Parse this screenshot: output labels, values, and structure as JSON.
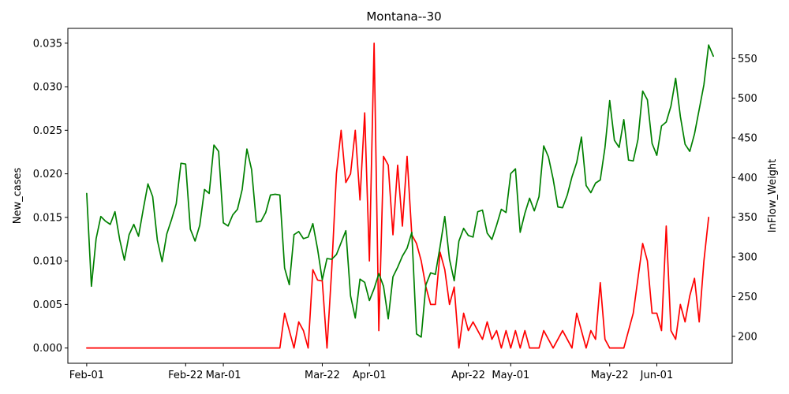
{
  "chart_data": {
    "type": "line",
    "title": "Montana--30",
    "xlabel": "",
    "ylabel": "New_cases",
    "y2label": "InFlow_Weight",
    "x_tick_labels": [
      "Feb-01",
      "Feb-22",
      "Mar-01",
      "Mar-22",
      "Apr-01",
      "Apr-22",
      "May-01",
      "May-22",
      "Jun-01"
    ],
    "x_tick_dates": [
      "2020-02-01",
      "2020-02-22",
      "2020-03-01",
      "2020-03-22",
      "2020-04-01",
      "2020-04-22",
      "2020-05-01",
      "2020-05-22",
      "2020-06-01"
    ],
    "ylim": [
      -0.00175,
      0.0367
    ],
    "y_ticks": [
      0.0,
      0.005,
      0.01,
      0.015,
      0.02,
      0.025,
      0.03,
      0.035
    ],
    "y_tick_labels": [
      "0.000",
      "0.005",
      "0.010",
      "0.015",
      "0.020",
      "0.025",
      "0.030",
      "0.035"
    ],
    "y2lim": [
      166,
      588
    ],
    "y2_ticks": [
      200,
      250,
      300,
      350,
      400,
      450,
      500,
      550
    ],
    "y2_tick_labels": [
      "200",
      "250",
      "300",
      "350",
      "400",
      "450",
      "500",
      "550"
    ],
    "grid": false,
    "legend": "none",
    "series": [
      {
        "axis": "left",
        "color": "#ff0000",
        "points": [
          [
            "2020-02-01",
            0
          ],
          [
            "2020-03-13",
            0
          ],
          [
            "2020-03-14",
            0.004
          ],
          [
            "2020-03-15",
            0.002
          ],
          [
            "2020-03-16",
            0
          ],
          [
            "2020-03-17",
            0.003
          ],
          [
            "2020-03-18",
            0.002
          ],
          [
            "2020-03-19",
            0
          ],
          [
            "2020-03-20",
            0.009
          ],
          [
            "2020-03-21",
            0.0078
          ],
          [
            "2020-03-22",
            0.0077
          ],
          [
            "2020-03-23",
            0
          ],
          [
            "2020-03-24",
            0.009
          ],
          [
            "2020-03-25",
            0.02
          ],
          [
            "2020-03-26",
            0.025
          ],
          [
            "2020-03-27",
            0.019
          ],
          [
            "2020-03-28",
            0.02
          ],
          [
            "2020-03-29",
            0.025
          ],
          [
            "2020-03-30",
            0.017
          ],
          [
            "2020-03-31",
            0.027
          ],
          [
            "2020-04-01",
            0.01
          ],
          [
            "2020-04-02",
            0.035
          ],
          [
            "2020-04-03",
            0.002
          ],
          [
            "2020-04-04",
            0.022
          ],
          [
            "2020-04-05",
            0.021
          ],
          [
            "2020-04-06",
            0.013
          ],
          [
            "2020-04-07",
            0.021
          ],
          [
            "2020-04-08",
            0.014
          ],
          [
            "2020-04-09",
            0.022
          ],
          [
            "2020-04-10",
            0.013
          ],
          [
            "2020-04-11",
            0.012
          ],
          [
            "2020-04-12",
            0.01
          ],
          [
            "2020-04-13",
            0.007
          ],
          [
            "2020-04-14",
            0.005
          ],
          [
            "2020-04-15",
            0.005
          ],
          [
            "2020-04-16",
            0.011
          ],
          [
            "2020-04-17",
            0.009
          ],
          [
            "2020-04-18",
            0.005
          ],
          [
            "2020-04-19",
            0.007
          ],
          [
            "2020-04-20",
            0
          ],
          [
            "2020-04-21",
            0.004
          ],
          [
            "2020-04-22",
            0.002
          ],
          [
            "2020-04-23",
            0.003
          ],
          [
            "2020-04-24",
            0.002
          ],
          [
            "2020-04-25",
            0.001
          ],
          [
            "2020-04-26",
            0.003
          ],
          [
            "2020-04-27",
            0.001
          ],
          [
            "2020-04-28",
            0.002
          ],
          [
            "2020-04-29",
            0
          ],
          [
            "2020-04-30",
            0.002
          ],
          [
            "2020-05-01",
            0
          ],
          [
            "2020-05-02",
            0.002
          ],
          [
            "2020-05-03",
            0
          ],
          [
            "2020-05-04",
            0.002
          ],
          [
            "2020-05-05",
            0
          ],
          [
            "2020-05-07",
            0
          ],
          [
            "2020-05-08",
            0.002
          ],
          [
            "2020-05-09",
            0.001
          ],
          [
            "2020-05-10",
            0
          ],
          [
            "2020-05-12",
            0.002
          ],
          [
            "2020-05-14",
            0
          ],
          [
            "2020-05-15",
            0.004
          ],
          [
            "2020-05-16",
            0.002
          ],
          [
            "2020-05-17",
            0
          ],
          [
            "2020-05-18",
            0.002
          ],
          [
            "2020-05-19",
            0.001
          ],
          [
            "2020-05-20",
            0.0075
          ],
          [
            "2020-05-21",
            0.001
          ],
          [
            "2020-05-22",
            0
          ],
          [
            "2020-05-25",
            0
          ],
          [
            "2020-05-27",
            0.004
          ],
          [
            "2020-05-28",
            0.008
          ],
          [
            "2020-05-29",
            0.012
          ],
          [
            "2020-05-30",
            0.01
          ],
          [
            "2020-05-31",
            0.004
          ],
          [
            "2020-06-01",
            0.004
          ],
          [
            "2020-06-02",
            0.002
          ],
          [
            "2020-06-03",
            0.014
          ],
          [
            "2020-06-04",
            0.002
          ],
          [
            "2020-06-05",
            0.001
          ],
          [
            "2020-06-06",
            0.005
          ],
          [
            "2020-06-07",
            0.003
          ],
          [
            "2020-06-08",
            0.006
          ],
          [
            "2020-06-09",
            0.008
          ],
          [
            "2020-06-10",
            0.003
          ],
          [
            "2020-06-11",
            0.01
          ],
          [
            "2020-06-12",
            0.015
          ]
        ]
      },
      {
        "axis": "right",
        "color": "#008000",
        "points": [
          [
            "2020-02-01",
            380
          ],
          [
            "2020-02-02",
            263
          ],
          [
            "2020-02-03",
            323
          ],
          [
            "2020-02-04",
            351
          ],
          [
            "2020-02-05",
            345
          ],
          [
            "2020-02-06",
            341
          ],
          [
            "2020-02-07",
            357
          ],
          [
            "2020-02-08",
            322
          ],
          [
            "2020-02-09",
            296
          ],
          [
            "2020-02-10",
            328
          ],
          [
            "2020-02-11",
            341
          ],
          [
            "2020-02-12",
            326
          ],
          [
            "2020-02-13",
            360
          ],
          [
            "2020-02-14",
            392
          ],
          [
            "2020-02-15",
            376
          ],
          [
            "2020-02-16",
            321
          ],
          [
            "2020-02-17",
            294
          ],
          [
            "2020-02-18",
            329
          ],
          [
            "2020-02-19",
            347
          ],
          [
            "2020-02-20",
            367
          ],
          [
            "2020-02-21",
            418
          ],
          [
            "2020-02-22",
            417
          ],
          [
            "2020-02-23",
            335
          ],
          [
            "2020-02-24",
            320
          ],
          [
            "2020-02-25",
            340
          ],
          [
            "2020-02-26",
            385
          ],
          [
            "2020-02-27",
            380
          ],
          [
            "2020-02-28",
            441
          ],
          [
            "2020-02-29",
            433
          ],
          [
            "2020-03-01",
            343
          ],
          [
            "2020-03-02",
            339
          ],
          [
            "2020-03-03",
            353
          ],
          [
            "2020-03-04",
            360
          ],
          [
            "2020-03-05",
            385
          ],
          [
            "2020-03-06",
            436
          ],
          [
            "2020-03-07",
            410
          ],
          [
            "2020-03-08",
            344
          ],
          [
            "2020-03-09",
            345
          ],
          [
            "2020-03-10",
            356
          ],
          [
            "2020-03-11",
            378
          ],
          [
            "2020-03-12",
            379
          ],
          [
            "2020-03-13",
            378
          ],
          [
            "2020-03-14",
            286
          ],
          [
            "2020-03-15",
            265
          ],
          [
            "2020-03-16",
            328
          ],
          [
            "2020-03-17",
            332
          ],
          [
            "2020-03-18",
            323
          ],
          [
            "2020-03-19",
            325
          ],
          [
            "2020-03-20",
            342
          ],
          [
            "2020-03-21",
            310
          ],
          [
            "2020-03-22",
            271
          ],
          [
            "2020-03-23",
            298
          ],
          [
            "2020-03-24",
            297
          ],
          [
            "2020-03-25",
            303
          ],
          [
            "2020-03-26",
            318
          ],
          [
            "2020-03-27",
            333
          ],
          [
            "2020-03-28",
            251
          ],
          [
            "2020-03-29",
            223
          ],
          [
            "2020-03-30",
            272
          ],
          [
            "2020-03-31",
            268
          ],
          [
            "2020-04-01",
            245
          ],
          [
            "2020-04-02",
            260
          ],
          [
            "2020-04-03",
            279
          ],
          [
            "2020-04-04",
            263
          ],
          [
            "2020-04-05",
            222
          ],
          [
            "2020-04-06",
            275
          ],
          [
            "2020-04-07",
            287
          ],
          [
            "2020-04-08",
            301
          ],
          [
            "2020-04-09",
            311
          ],
          [
            "2020-04-10",
            331
          ],
          [
            "2020-04-11",
            203
          ],
          [
            "2020-04-12",
            199
          ],
          [
            "2020-04-13",
            265
          ],
          [
            "2020-04-14",
            280
          ],
          [
            "2020-04-15",
            278
          ],
          [
            "2020-04-16",
            313
          ],
          [
            "2020-04-17",
            351
          ],
          [
            "2020-04-18",
            297
          ],
          [
            "2020-04-19",
            270
          ],
          [
            "2020-04-20",
            320
          ],
          [
            "2020-04-21",
            336
          ],
          [
            "2020-04-22",
            327
          ],
          [
            "2020-04-23",
            325
          ],
          [
            "2020-04-24",
            357
          ],
          [
            "2020-04-25",
            359
          ],
          [
            "2020-04-26",
            330
          ],
          [
            "2020-04-27",
            322
          ],
          [
            "2020-04-28",
            340
          ],
          [
            "2020-04-29",
            360
          ],
          [
            "2020-04-30",
            356
          ],
          [
            "2020-05-01",
            405
          ],
          [
            "2020-05-02",
            411
          ],
          [
            "2020-05-03",
            331
          ],
          [
            "2020-05-04",
            355
          ],
          [
            "2020-05-05",
            374
          ],
          [
            "2020-05-06",
            358
          ],
          [
            "2020-05-07",
            376
          ],
          [
            "2020-05-08",
            440
          ],
          [
            "2020-05-09",
            426
          ],
          [
            "2020-05-10",
            398
          ],
          [
            "2020-05-11",
            363
          ],
          [
            "2020-05-12",
            362
          ],
          [
            "2020-05-13",
            378
          ],
          [
            "2020-05-14",
            401
          ],
          [
            "2020-05-15",
            419
          ],
          [
            "2020-05-16",
            451
          ],
          [
            "2020-05-17",
            390
          ],
          [
            "2020-05-18",
            381
          ],
          [
            "2020-05-19",
            393
          ],
          [
            "2020-05-20",
            397
          ],
          [
            "2020-05-21",
            438
          ],
          [
            "2020-05-22",
            497
          ],
          [
            "2020-05-23",
            447
          ],
          [
            "2020-05-24",
            438
          ],
          [
            "2020-05-25",
            473
          ],
          [
            "2020-05-26",
            422
          ],
          [
            "2020-05-27",
            421
          ],
          [
            "2020-05-28",
            448
          ],
          [
            "2020-05-29",
            509
          ],
          [
            "2020-05-30",
            498
          ],
          [
            "2020-05-31",
            443
          ],
          [
            "2020-06-01",
            428
          ],
          [
            "2020-06-02",
            465
          ],
          [
            "2020-06-03",
            470
          ],
          [
            "2020-06-04",
            490
          ],
          [
            "2020-06-05",
            525
          ],
          [
            "2020-06-06",
            477
          ],
          [
            "2020-06-07",
            442
          ],
          [
            "2020-06-08",
            433
          ],
          [
            "2020-06-09",
            455
          ],
          [
            "2020-06-10",
            486
          ],
          [
            "2020-06-11",
            517
          ],
          [
            "2020-06-12",
            567
          ],
          [
            "2020-06-13",
            553
          ]
        ]
      }
    ]
  }
}
